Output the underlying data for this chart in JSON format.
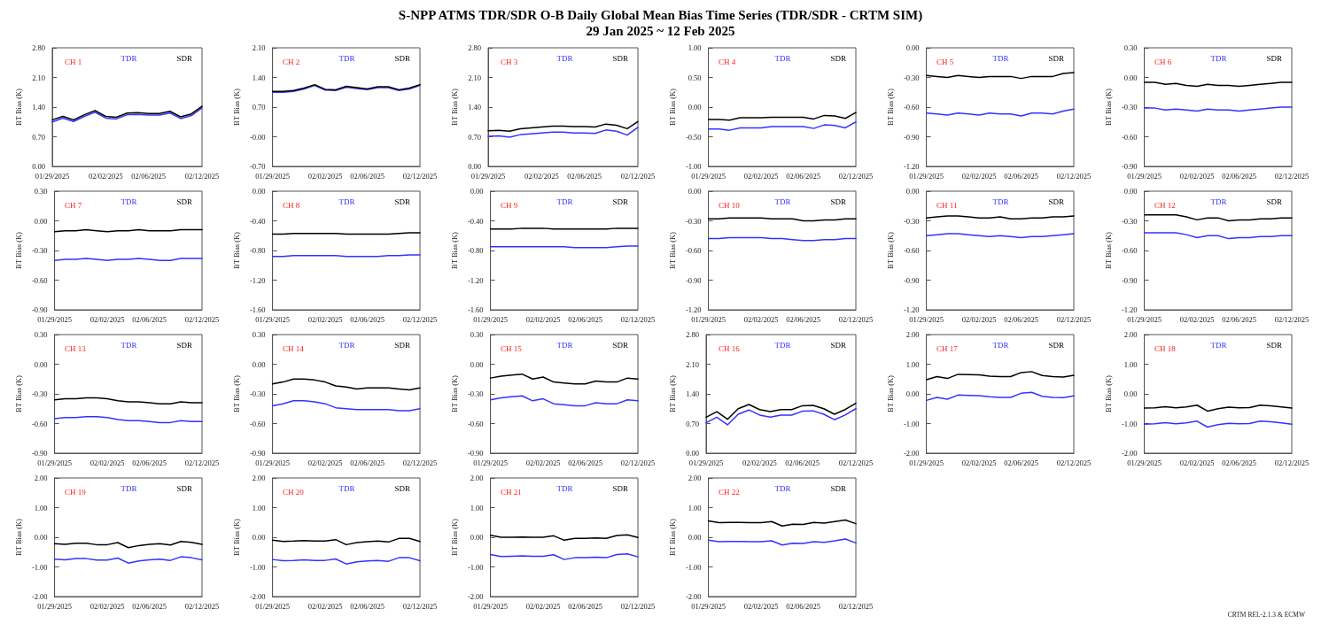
{
  "chart_data": [
    {
      "type": "other",
      "title": "S-NPP ATMS TDR/SDR O-B Daily Global Mean Bias Time Series (TDR/SDR - CRTM SIM)",
      "subtitle": "29 Jan 2025 ~ 12 Feb 2025",
      "annotations": [
        "CRTM REL-2.1.3 & ECMW"
      ]
    },
    {
      "type": "line",
      "title": "CH 1",
      "ylabel": "BT Bias (K)",
      "legend": "top right",
      "categories": [
        "01/29/2025",
        null,
        null,
        null,
        null,
        "02/02/2025",
        null,
        null,
        null,
        "02/06/2025",
        null,
        null,
        null,
        null,
        "02/12/2025"
      ],
      "ylim": [
        0,
        2.8
      ],
      "yticks": [
        {
          "value": 0,
          "label": "0.00"
        },
        {
          "value": 0.7,
          "label": "0.70"
        },
        {
          "value": 1.4,
          "label": "1.40"
        },
        {
          "value": 2.1,
          "label": "2.10"
        },
        {
          "value": 2.8,
          "label": "2.80"
        }
      ],
      "series": [
        {
          "name": "TDR",
          "color": "#3333ff",
          "values": [
            1.05,
            1.14,
            1.06,
            1.18,
            1.28,
            1.14,
            1.12,
            1.22,
            1.23,
            1.21,
            1.21,
            1.26,
            1.13,
            1.2,
            1.38
          ]
        },
        {
          "name": "SDR",
          "color": "#000000",
          "values": [
            1.1,
            1.18,
            1.1,
            1.22,
            1.32,
            1.18,
            1.16,
            1.26,
            1.27,
            1.25,
            1.25,
            1.3,
            1.17,
            1.24,
            1.42
          ]
        }
      ]
    },
    {
      "type": "line",
      "title": "CH 2",
      "ylabel": "BT Bias (K)",
      "legend": "top right",
      "categories": [
        "01/29/2025",
        null,
        null,
        null,
        null,
        "02/02/2025",
        null,
        null,
        null,
        "02/06/2025",
        null,
        null,
        null,
        null,
        "02/12/2025"
      ],
      "ylim": [
        -0.7,
        2.1
      ],
      "yticks": [
        {
          "value": -0.7,
          "label": "-0.70"
        },
        {
          "value": 0,
          "label": "-0.00"
        },
        {
          "value": 0.7,
          "label": "0.70"
        },
        {
          "value": 1.4,
          "label": "1.40"
        },
        {
          "value": 2.1,
          "label": "2.10"
        }
      ],
      "series": [
        {
          "name": "TDR",
          "color": "#3333ff",
          "values": [
            1.05,
            1.05,
            1.07,
            1.13,
            1.21,
            1.1,
            1.09,
            1.17,
            1.14,
            1.11,
            1.16,
            1.16,
            1.09,
            1.13,
            1.21
          ]
        },
        {
          "name": "SDR",
          "color": "#000000",
          "values": [
            1.07,
            1.07,
            1.09,
            1.15,
            1.23,
            1.12,
            1.11,
            1.19,
            1.16,
            1.13,
            1.18,
            1.18,
            1.11,
            1.15,
            1.23
          ]
        }
      ]
    },
    {
      "type": "line",
      "title": "CH 3",
      "ylabel": "BT Bias (K)",
      "legend": "top right",
      "categories": [
        "01/29/2025",
        null,
        null,
        null,
        null,
        "02/02/2025",
        null,
        null,
        null,
        "02/06/2025",
        null,
        null,
        null,
        null,
        "02/12/2025"
      ],
      "ylim": [
        0,
        2.8
      ],
      "yticks": [
        {
          "value": 0,
          "label": "0.00"
        },
        {
          "value": 0.7,
          "label": "0.70"
        },
        {
          "value": 1.4,
          "label": "1.40"
        },
        {
          "value": 2.1,
          "label": "2.10"
        },
        {
          "value": 2.8,
          "label": "2.80"
        }
      ],
      "series": [
        {
          "name": "TDR",
          "color": "#3333ff",
          "values": [
            0.71,
            0.72,
            0.69,
            0.75,
            0.77,
            0.79,
            0.81,
            0.81,
            0.79,
            0.79,
            0.78,
            0.86,
            0.83,
            0.74,
            0.92
          ]
        },
        {
          "name": "SDR",
          "color": "#000000",
          "values": [
            0.84,
            0.85,
            0.83,
            0.89,
            0.91,
            0.93,
            0.95,
            0.95,
            0.94,
            0.94,
            0.93,
            1.0,
            0.97,
            0.89,
            1.06
          ]
        }
      ]
    },
    {
      "type": "line",
      "title": "CH 4",
      "ylabel": "BT Bias (K)",
      "legend": "top right",
      "categories": [
        "01/29/2025",
        null,
        null,
        null,
        null,
        "02/02/2025",
        null,
        null,
        null,
        "02/06/2025",
        null,
        null,
        null,
        null,
        "02/12/2025"
      ],
      "ylim": [
        -1,
        1
      ],
      "yticks": [
        {
          "value": -1,
          "label": "-1.00"
        },
        {
          "value": -0.5,
          "label": "-0.50"
        },
        {
          "value": 0,
          "label": "0.00"
        },
        {
          "value": 0.5,
          "label": "0.50"
        },
        {
          "value": 1,
          "label": "1.00"
        }
      ],
      "series": [
        {
          "name": "TDR",
          "color": "#3333ff",
          "values": [
            -0.37,
            -0.37,
            -0.39,
            -0.35,
            -0.35,
            -0.35,
            -0.33,
            -0.33,
            -0.33,
            -0.33,
            -0.36,
            -0.3,
            -0.31,
            -0.35,
            -0.25
          ]
        },
        {
          "name": "SDR",
          "color": "#000000",
          "values": [
            -0.21,
            -0.21,
            -0.22,
            -0.18,
            -0.18,
            -0.18,
            -0.17,
            -0.17,
            -0.17,
            -0.17,
            -0.2,
            -0.14,
            -0.15,
            -0.19,
            -0.09
          ]
        }
      ]
    },
    {
      "type": "line",
      "title": "CH 5",
      "ylabel": "BT Bias (K)",
      "legend": "top right",
      "categories": [
        "01/29/2025",
        null,
        null,
        null,
        null,
        "02/02/2025",
        null,
        null,
        null,
        "02/06/2025",
        null,
        null,
        null,
        null,
        "02/12/2025"
      ],
      "ylim": [
        -1.2,
        0
      ],
      "yticks": [
        {
          "value": -1.2,
          "label": "-1.20"
        },
        {
          "value": -0.9,
          "label": "-0.90"
        },
        {
          "value": -0.6,
          "label": "-0.60"
        },
        {
          "value": -0.3,
          "label": "-0.30"
        },
        {
          "value": 0,
          "label": "0.00"
        }
      ],
      "series": [
        {
          "name": "TDR",
          "color": "#3333ff",
          "values": [
            -0.66,
            -0.67,
            -0.68,
            -0.66,
            -0.67,
            -0.68,
            -0.66,
            -0.67,
            -0.67,
            -0.69,
            -0.66,
            -0.66,
            -0.67,
            -0.64,
            -0.62
          ]
        },
        {
          "name": "SDR",
          "color": "#000000",
          "values": [
            -0.28,
            -0.29,
            -0.3,
            -0.28,
            -0.29,
            -0.3,
            -0.29,
            -0.29,
            -0.29,
            -0.31,
            -0.29,
            -0.29,
            -0.29,
            -0.26,
            -0.25
          ]
        }
      ]
    },
    {
      "type": "line",
      "title": "CH 6",
      "ylabel": "BT Bias (K)",
      "legend": "top right",
      "categories": [
        "01/29/2025",
        null,
        null,
        null,
        null,
        "02/02/2025",
        null,
        null,
        null,
        "02/06/2025",
        null,
        null,
        null,
        null,
        "02/12/2025"
      ],
      "ylim": [
        -0.9,
        0.3
      ],
      "yticks": [
        {
          "value": -0.9,
          "label": "-0.90"
        },
        {
          "value": -0.6,
          "label": "-0.60"
        },
        {
          "value": -0.3,
          "label": "-0.30"
        },
        {
          "value": 0,
          "label": "0.00"
        },
        {
          "value": 0.3,
          "label": "0.30"
        }
      ],
      "series": [
        {
          "name": "TDR",
          "color": "#3333ff",
          "values": [
            -0.31,
            -0.31,
            -0.33,
            -0.32,
            -0.33,
            -0.34,
            -0.32,
            -0.33,
            -0.33,
            -0.34,
            -0.33,
            -0.32,
            -0.31,
            -0.3,
            -0.3
          ]
        },
        {
          "name": "SDR",
          "color": "#000000",
          "values": [
            -0.05,
            -0.05,
            -0.07,
            -0.06,
            -0.08,
            -0.09,
            -0.07,
            -0.08,
            -0.08,
            -0.09,
            -0.08,
            -0.07,
            -0.06,
            -0.05,
            -0.05
          ]
        }
      ]
    },
    {
      "type": "line",
      "title": "CH 7",
      "ylabel": "BT Bias (K)",
      "legend": "top right",
      "categories": [
        "01/29/2025",
        null,
        null,
        null,
        null,
        "02/02/2025",
        null,
        null,
        null,
        "02/06/2025",
        null,
        null,
        null,
        null,
        "02/12/2025"
      ],
      "ylim": [
        -0.9,
        0.3
      ],
      "yticks": [
        {
          "value": -0.9,
          "label": "-0.90"
        },
        {
          "value": -0.6,
          "label": "-0.60"
        },
        {
          "value": -0.3,
          "label": "-0.30"
        },
        {
          "value": 0,
          "label": "0.00"
        },
        {
          "value": 0.3,
          "label": "0.30"
        }
      ],
      "series": [
        {
          "name": "TDR",
          "color": "#3333ff",
          "values": [
            -0.4,
            -0.39,
            -0.39,
            -0.38,
            -0.39,
            -0.4,
            -0.39,
            -0.39,
            -0.38,
            -0.39,
            -0.4,
            -0.4,
            -0.38,
            -0.38,
            -0.38
          ]
        },
        {
          "name": "SDR",
          "color": "#000000",
          "values": [
            -0.11,
            -0.1,
            -0.1,
            -0.09,
            -0.1,
            -0.11,
            -0.1,
            -0.1,
            -0.09,
            -0.1,
            -0.1,
            -0.1,
            -0.09,
            -0.09,
            -0.09
          ]
        }
      ]
    },
    {
      "type": "line",
      "title": "CH 8",
      "ylabel": "BT Bias (K)",
      "legend": "top right",
      "categories": [
        "01/29/2025",
        null,
        null,
        null,
        null,
        "02/02/2025",
        null,
        null,
        null,
        "02/06/2025",
        null,
        null,
        null,
        null,
        "02/12/2025"
      ],
      "ylim": [
        -1.6,
        0
      ],
      "yticks": [
        {
          "value": -1.6,
          "label": "-1.60"
        },
        {
          "value": -1.2,
          "label": "-1.20"
        },
        {
          "value": -0.8,
          "label": "-0.80"
        },
        {
          "value": -0.4,
          "label": "-0.40"
        },
        {
          "value": 0,
          "label": "0.00"
        }
      ],
      "series": [
        {
          "name": "TDR",
          "color": "#3333ff",
          "values": [
            -0.88,
            -0.88,
            -0.87,
            -0.87,
            -0.87,
            -0.87,
            -0.87,
            -0.88,
            -0.88,
            -0.88,
            -0.88,
            -0.87,
            -0.87,
            -0.86,
            -0.86
          ]
        },
        {
          "name": "SDR",
          "color": "#000000",
          "values": [
            -0.58,
            -0.58,
            -0.57,
            -0.57,
            -0.57,
            -0.57,
            -0.57,
            -0.58,
            -0.58,
            -0.58,
            -0.58,
            -0.58,
            -0.57,
            -0.56,
            -0.56
          ]
        }
      ]
    },
    {
      "type": "line",
      "title": "CH 9",
      "ylabel": "BT Bias (K)",
      "legend": "top right",
      "categories": [
        "01/29/2025",
        null,
        null,
        null,
        null,
        "02/02/2025",
        null,
        null,
        null,
        "02/06/2025",
        null,
        null,
        null,
        null,
        "02/12/2025"
      ],
      "ylim": [
        -1.6,
        0
      ],
      "yticks": [
        {
          "value": -1.6,
          "label": "-1.60"
        },
        {
          "value": -1.2,
          "label": "-1.20"
        },
        {
          "value": -0.8,
          "label": "-0.80"
        },
        {
          "value": -0.4,
          "label": "-0.40"
        },
        {
          "value": 0,
          "label": "0.00"
        }
      ],
      "series": [
        {
          "name": "TDR",
          "color": "#3333ff",
          "values": [
            -0.75,
            -0.75,
            -0.75,
            -0.75,
            -0.75,
            -0.75,
            -0.75,
            -0.75,
            -0.76,
            -0.76,
            -0.76,
            -0.76,
            -0.75,
            -0.74,
            -0.74
          ]
        },
        {
          "name": "SDR",
          "color": "#000000",
          "values": [
            -0.51,
            -0.51,
            -0.51,
            -0.5,
            -0.5,
            -0.5,
            -0.51,
            -0.51,
            -0.51,
            -0.51,
            -0.51,
            -0.51,
            -0.5,
            -0.5,
            -0.5
          ]
        }
      ]
    },
    {
      "type": "line",
      "title": "CH 10",
      "ylabel": "BT Bias (K)",
      "legend": "top right",
      "categories": [
        "01/29/2025",
        null,
        null,
        null,
        null,
        "02/02/2025",
        null,
        null,
        null,
        "02/06/2025",
        null,
        null,
        null,
        null,
        "02/12/2025"
      ],
      "ylim": [
        -1.2,
        0
      ],
      "yticks": [
        {
          "value": -1.2,
          "label": "-1.20"
        },
        {
          "value": -0.9,
          "label": "-0.90"
        },
        {
          "value": -0.6,
          "label": "-0.60"
        },
        {
          "value": -0.3,
          "label": "-0.30"
        },
        {
          "value": 0,
          "label": "0.00"
        }
      ],
      "series": [
        {
          "name": "TDR",
          "color": "#3333ff",
          "values": [
            -0.48,
            -0.48,
            -0.47,
            -0.47,
            -0.47,
            -0.47,
            -0.48,
            -0.48,
            -0.49,
            -0.5,
            -0.5,
            -0.49,
            -0.49,
            -0.48,
            -0.48
          ]
        },
        {
          "name": "SDR",
          "color": "#000000",
          "values": [
            -0.28,
            -0.28,
            -0.27,
            -0.27,
            -0.27,
            -0.27,
            -0.28,
            -0.28,
            -0.28,
            -0.3,
            -0.3,
            -0.29,
            -0.29,
            -0.28,
            -0.28
          ]
        }
      ]
    },
    {
      "type": "line",
      "title": "CH 11",
      "ylabel": "BT Bias (K)",
      "legend": "top right",
      "categories": [
        "01/29/2025",
        null,
        null,
        null,
        null,
        "02/02/2025",
        null,
        null,
        null,
        "02/06/2025",
        null,
        null,
        null,
        null,
        "02/12/2025"
      ],
      "ylim": [
        -1.2,
        0
      ],
      "yticks": [
        {
          "value": -1.2,
          "label": "-1.20"
        },
        {
          "value": -0.9,
          "label": "-0.90"
        },
        {
          "value": -0.6,
          "label": "-0.60"
        },
        {
          "value": -0.3,
          "label": "-0.30"
        },
        {
          "value": 0,
          "label": "0.00"
        }
      ],
      "series": [
        {
          "name": "TDR",
          "color": "#3333ff",
          "values": [
            -0.45,
            -0.44,
            -0.43,
            -0.43,
            -0.44,
            -0.45,
            -0.46,
            -0.45,
            -0.46,
            -0.47,
            -0.46,
            -0.46,
            -0.45,
            -0.44,
            -0.43
          ]
        },
        {
          "name": "SDR",
          "color": "#000000",
          "values": [
            -0.27,
            -0.26,
            -0.25,
            -0.25,
            -0.26,
            -0.27,
            -0.27,
            -0.26,
            -0.28,
            -0.28,
            -0.27,
            -0.27,
            -0.26,
            -0.26,
            -0.25
          ]
        }
      ]
    },
    {
      "type": "line",
      "title": "CH 12",
      "ylabel": "BT Bias (K)",
      "legend": "top right",
      "categories": [
        "01/29/2025",
        null,
        null,
        null,
        null,
        "02/02/2025",
        null,
        null,
        null,
        "02/06/2025",
        null,
        null,
        null,
        null,
        "02/12/2025"
      ],
      "ylim": [
        -1.2,
        0
      ],
      "yticks": [
        {
          "value": -1.2,
          "label": "-1.20"
        },
        {
          "value": -0.9,
          "label": "-0.90"
        },
        {
          "value": -0.6,
          "label": "-0.60"
        },
        {
          "value": -0.3,
          "label": "-0.30"
        },
        {
          "value": 0,
          "label": "0.00"
        }
      ],
      "series": [
        {
          "name": "TDR",
          "color": "#3333ff",
          "values": [
            -0.42,
            -0.42,
            -0.42,
            -0.42,
            -0.44,
            -0.47,
            -0.45,
            -0.45,
            -0.48,
            -0.47,
            -0.47,
            -0.46,
            -0.46,
            -0.45,
            -0.45
          ]
        },
        {
          "name": "SDR",
          "color": "#000000",
          "values": [
            -0.24,
            -0.24,
            -0.24,
            -0.24,
            -0.26,
            -0.29,
            -0.27,
            -0.27,
            -0.3,
            -0.29,
            -0.29,
            -0.28,
            -0.28,
            -0.27,
            -0.27
          ]
        }
      ]
    },
    {
      "type": "line",
      "title": "CH 13",
      "ylabel": "BT Bias (K)",
      "legend": "top right",
      "categories": [
        "01/29/2025",
        null,
        null,
        null,
        null,
        "02/02/2025",
        null,
        null,
        null,
        "02/06/2025",
        null,
        null,
        null,
        null,
        "02/12/2025"
      ],
      "ylim": [
        -0.9,
        0.3
      ],
      "yticks": [
        {
          "value": -0.9,
          "label": "-0.90"
        },
        {
          "value": -0.6,
          "label": "-0.60"
        },
        {
          "value": -0.3,
          "label": "-0.30"
        },
        {
          "value": 0,
          "label": "0.00"
        },
        {
          "value": 0.3,
          "label": "0.30"
        }
      ],
      "series": [
        {
          "name": "TDR",
          "color": "#3333ff",
          "values": [
            -0.55,
            -0.54,
            -0.54,
            -0.53,
            -0.53,
            -0.54,
            -0.56,
            -0.57,
            -0.57,
            -0.58,
            -0.59,
            -0.59,
            -0.57,
            -0.58,
            -0.58
          ]
        },
        {
          "name": "SDR",
          "color": "#000000",
          "values": [
            -0.36,
            -0.35,
            -0.35,
            -0.34,
            -0.34,
            -0.35,
            -0.37,
            -0.38,
            -0.38,
            -0.39,
            -0.4,
            -0.4,
            -0.38,
            -0.39,
            -0.39
          ]
        }
      ]
    },
    {
      "type": "line",
      "title": "CH 14",
      "ylabel": "BT Bias (K)",
      "legend": "top right",
      "categories": [
        "01/29/2025",
        null,
        null,
        null,
        null,
        "02/02/2025",
        null,
        null,
        null,
        "02/06/2025",
        null,
        null,
        null,
        null,
        "02/12/2025"
      ],
      "ylim": [
        -0.9,
        0.3
      ],
      "yticks": [
        {
          "value": -0.9,
          "label": "-0.90"
        },
        {
          "value": -0.6,
          "label": "-0.60"
        },
        {
          "value": -0.3,
          "label": "-0.30"
        },
        {
          "value": 0,
          "label": "0.00"
        },
        {
          "value": 0.3,
          "label": "0.30"
        }
      ],
      "series": [
        {
          "name": "TDR",
          "color": "#3333ff",
          "values": [
            -0.42,
            -0.4,
            -0.37,
            -0.37,
            -0.38,
            -0.4,
            -0.44,
            -0.45,
            -0.46,
            -0.46,
            -0.46,
            -0.46,
            -0.47,
            -0.47,
            -0.45
          ]
        },
        {
          "name": "SDR",
          "color": "#000000",
          "values": [
            -0.2,
            -0.18,
            -0.15,
            -0.15,
            -0.16,
            -0.18,
            -0.22,
            -0.23,
            -0.25,
            -0.24,
            -0.24,
            -0.24,
            -0.25,
            -0.26,
            -0.24
          ]
        }
      ]
    },
    {
      "type": "line",
      "title": "CH 15",
      "ylabel": "BT Bias (K)",
      "legend": "top right",
      "categories": [
        "01/29/2025",
        null,
        null,
        null,
        null,
        "02/02/2025",
        null,
        null,
        null,
        "02/06/2025",
        null,
        null,
        null,
        null,
        "02/12/2025"
      ],
      "ylim": [
        -0.9,
        0.3
      ],
      "yticks": [
        {
          "value": -0.9,
          "label": "-0.90"
        },
        {
          "value": -0.6,
          "label": "-0.60"
        },
        {
          "value": -0.3,
          "label": "-0.30"
        },
        {
          "value": 0,
          "label": "0.00"
        },
        {
          "value": 0.3,
          "label": "0.30"
        }
      ],
      "series": [
        {
          "name": "TDR",
          "color": "#3333ff",
          "values": [
            -0.36,
            -0.34,
            -0.33,
            -0.32,
            -0.37,
            -0.35,
            -0.4,
            -0.41,
            -0.42,
            -0.42,
            -0.39,
            -0.4,
            -0.4,
            -0.36,
            -0.37
          ]
        },
        {
          "name": "SDR",
          "color": "#000000",
          "values": [
            -0.14,
            -0.12,
            -0.11,
            -0.1,
            -0.15,
            -0.13,
            -0.18,
            -0.19,
            -0.2,
            -0.2,
            -0.17,
            -0.18,
            -0.18,
            -0.14,
            -0.15
          ]
        }
      ]
    },
    {
      "type": "line",
      "title": "CH 16",
      "ylabel": "BT Bias (K)",
      "legend": "top right",
      "categories": [
        "01/29/2025",
        null,
        null,
        null,
        null,
        "02/02/2025",
        null,
        null,
        null,
        "02/06/2025",
        null,
        null,
        null,
        null,
        "02/12/2025"
      ],
      "ylim": [
        0,
        2.8
      ],
      "yticks": [
        {
          "value": 0,
          "label": "0.00"
        },
        {
          "value": 0.7,
          "label": "0.70"
        },
        {
          "value": 1.4,
          "label": "1.40"
        },
        {
          "value": 2.1,
          "label": "2.10"
        },
        {
          "value": 2.8,
          "label": "2.80"
        }
      ],
      "series": [
        {
          "name": "TDR",
          "color": "#3333ff",
          "values": [
            0.72,
            0.85,
            0.67,
            0.92,
            1.02,
            0.9,
            0.85,
            0.9,
            0.9,
            0.99,
            1.0,
            0.92,
            0.79,
            0.9,
            1.05
          ]
        },
        {
          "name": "SDR",
          "color": "#000000",
          "values": [
            0.85,
            0.98,
            0.8,
            1.05,
            1.15,
            1.03,
            0.98,
            1.03,
            1.03,
            1.12,
            1.13,
            1.05,
            0.92,
            1.03,
            1.18
          ]
        }
      ]
    },
    {
      "type": "line",
      "title": "CH 17",
      "ylabel": "BT Bias (K)",
      "legend": "top right",
      "categories": [
        "01/29/2025",
        null,
        null,
        null,
        null,
        "02/02/2025",
        null,
        null,
        null,
        "02/06/2025",
        null,
        null,
        null,
        null,
        "02/12/2025"
      ],
      "ylim": [
        -2,
        2
      ],
      "yticks": [
        {
          "value": -2,
          "label": "-2.00"
        },
        {
          "value": -1,
          "label": "-1.00"
        },
        {
          "value": 0,
          "label": "0.00"
        },
        {
          "value": 1,
          "label": "1.00"
        },
        {
          "value": 2,
          "label": "2.00"
        }
      ],
      "series": [
        {
          "name": "TDR",
          "color": "#3333ff",
          "values": [
            -0.22,
            -0.12,
            -0.18,
            -0.04,
            -0.05,
            -0.06,
            -0.1,
            -0.12,
            -0.12,
            0.02,
            0.05,
            -0.08,
            -0.12,
            -0.13,
            -0.07
          ]
        },
        {
          "name": "SDR",
          "color": "#000000",
          "values": [
            0.48,
            0.58,
            0.52,
            0.66,
            0.65,
            0.64,
            0.6,
            0.58,
            0.58,
            0.72,
            0.75,
            0.62,
            0.58,
            0.57,
            0.63
          ]
        }
      ]
    },
    {
      "type": "line",
      "title": "CH 18",
      "ylabel": "BT Bias (K)",
      "legend": "top right",
      "categories": [
        "01/29/2025",
        null,
        null,
        null,
        null,
        "02/02/2025",
        null,
        null,
        null,
        "02/06/2025",
        null,
        null,
        null,
        null,
        "02/12/2025"
      ],
      "ylim": [
        -2,
        2
      ],
      "yticks": [
        {
          "value": -2,
          "label": "-2.00"
        },
        {
          "value": -1,
          "label": "-1.00"
        },
        {
          "value": 0,
          "label": "0.00"
        },
        {
          "value": 1,
          "label": "1.00"
        },
        {
          "value": 2,
          "label": "2.00"
        }
      ],
      "series": [
        {
          "name": "TDR",
          "color": "#3333ff",
          "values": [
            -1.02,
            -1.01,
            -0.97,
            -1.01,
            -0.98,
            -0.92,
            -1.12,
            -1.04,
            -0.99,
            -1.01,
            -1.0,
            -0.92,
            -0.94,
            -0.98,
            -1.02
          ]
        },
        {
          "name": "SDR",
          "color": "#000000",
          "values": [
            -0.48,
            -0.47,
            -0.43,
            -0.47,
            -0.44,
            -0.38,
            -0.58,
            -0.5,
            -0.45,
            -0.47,
            -0.46,
            -0.38,
            -0.4,
            -0.44,
            -0.48
          ]
        }
      ]
    },
    {
      "type": "line",
      "title": "CH 19",
      "ylabel": "BT Bias (K)",
      "legend": "top right",
      "categories": [
        "01/29/2025",
        null,
        null,
        null,
        null,
        "02/02/2025",
        null,
        null,
        null,
        "02/06/2025",
        null,
        null,
        null,
        null,
        "02/12/2025"
      ],
      "ylim": [
        -2,
        2
      ],
      "yticks": [
        {
          "value": -2,
          "label": "-2.00"
        },
        {
          "value": -1,
          "label": "-1.00"
        },
        {
          "value": 0,
          "label": "0.00"
        },
        {
          "value": 1,
          "label": "1.00"
        },
        {
          "value": 2,
          "label": "2.00"
        }
      ],
      "series": [
        {
          "name": "TDR",
          "color": "#3333ff",
          "values": [
            -0.74,
            -0.76,
            -0.72,
            -0.72,
            -0.77,
            -0.77,
            -0.7,
            -0.87,
            -0.8,
            -0.76,
            -0.74,
            -0.78,
            -0.66,
            -0.69,
            -0.76
          ]
        },
        {
          "name": "SDR",
          "color": "#000000",
          "values": [
            -0.22,
            -0.24,
            -0.2,
            -0.2,
            -0.25,
            -0.25,
            -0.18,
            -0.35,
            -0.28,
            -0.24,
            -0.22,
            -0.26,
            -0.14,
            -0.17,
            -0.24
          ]
        }
      ]
    },
    {
      "type": "line",
      "title": "CH 20",
      "ylabel": "BT Bias (K)",
      "legend": "top right",
      "categories": [
        "01/29/2025",
        null,
        null,
        null,
        null,
        "02/02/2025",
        null,
        null,
        null,
        "02/06/2025",
        null,
        null,
        null,
        null,
        "02/12/2025"
      ],
      "ylim": [
        -2,
        2
      ],
      "yticks": [
        {
          "value": -2,
          "label": "-2.00"
        },
        {
          "value": -1,
          "label": "-1.00"
        },
        {
          "value": 0,
          "label": "0.00"
        },
        {
          "value": 1,
          "label": "1.00"
        },
        {
          "value": 2,
          "label": "2.00"
        }
      ],
      "series": [
        {
          "name": "TDR",
          "color": "#3333ff",
          "values": [
            -0.75,
            -0.79,
            -0.78,
            -0.76,
            -0.78,
            -0.78,
            -0.73,
            -0.9,
            -0.83,
            -0.8,
            -0.78,
            -0.81,
            -0.69,
            -0.69,
            -0.79
          ]
        },
        {
          "name": "SDR",
          "color": "#000000",
          "values": [
            -0.1,
            -0.14,
            -0.13,
            -0.11,
            -0.13,
            -0.13,
            -0.08,
            -0.25,
            -0.18,
            -0.15,
            -0.13,
            -0.16,
            -0.04,
            -0.04,
            -0.14
          ]
        }
      ]
    },
    {
      "type": "line",
      "title": "CH 21",
      "ylabel": "BT Bias (K)",
      "legend": "top right",
      "categories": [
        "01/29/2025",
        null,
        null,
        null,
        null,
        "02/02/2025",
        null,
        null,
        null,
        "02/06/2025",
        null,
        null,
        null,
        null,
        "02/12/2025"
      ],
      "ylim": [
        -2,
        2
      ],
      "yticks": [
        {
          "value": -2,
          "label": "-2.00"
        },
        {
          "value": -1,
          "label": "-1.00"
        },
        {
          "value": 0,
          "label": "0.00"
        },
        {
          "value": 1,
          "label": "1.00"
        },
        {
          "value": 2,
          "label": "2.00"
        }
      ],
      "series": [
        {
          "name": "TDR",
          "color": "#3333ff",
          "values": [
            -0.58,
            -0.65,
            -0.64,
            -0.63,
            -0.64,
            -0.64,
            -0.59,
            -0.75,
            -0.69,
            -0.69,
            -0.67,
            -0.69,
            -0.58,
            -0.56,
            -0.66
          ]
        },
        {
          "name": "SDR",
          "color": "#000000",
          "values": [
            0.07,
            0.0,
            0.0,
            0.01,
            0.0,
            0.0,
            0.05,
            -0.1,
            -0.04,
            -0.04,
            -0.02,
            -0.04,
            0.06,
            0.08,
            -0.01
          ]
        }
      ]
    },
    {
      "type": "line",
      "title": "CH 22",
      "ylabel": "BT Bias (K)",
      "legend": "top right",
      "categories": [
        "01/29/2025",
        null,
        null,
        null,
        null,
        "02/02/2025",
        null,
        null,
        null,
        "02/06/2025",
        null,
        null,
        null,
        null,
        "02/12/2025"
      ],
      "ylim": [
        -2,
        2
      ],
      "yticks": [
        {
          "value": -2,
          "label": "-2.00"
        },
        {
          "value": -1,
          "label": "-1.00"
        },
        {
          "value": 0,
          "label": "0.00"
        },
        {
          "value": 1,
          "label": "1.00"
        },
        {
          "value": 2,
          "label": "2.00"
        }
      ],
      "series": [
        {
          "name": "TDR",
          "color": "#3333ff",
          "values": [
            -0.1,
            -0.15,
            -0.14,
            -0.14,
            -0.15,
            -0.15,
            -0.12,
            -0.26,
            -0.2,
            -0.21,
            -0.15,
            -0.17,
            -0.12,
            -0.06,
            -0.19
          ]
        },
        {
          "name": "SDR",
          "color": "#000000",
          "values": [
            0.55,
            0.49,
            0.5,
            0.5,
            0.49,
            0.49,
            0.53,
            0.38,
            0.44,
            0.43,
            0.5,
            0.48,
            0.53,
            0.58,
            0.46
          ]
        }
      ]
    }
  ]
}
